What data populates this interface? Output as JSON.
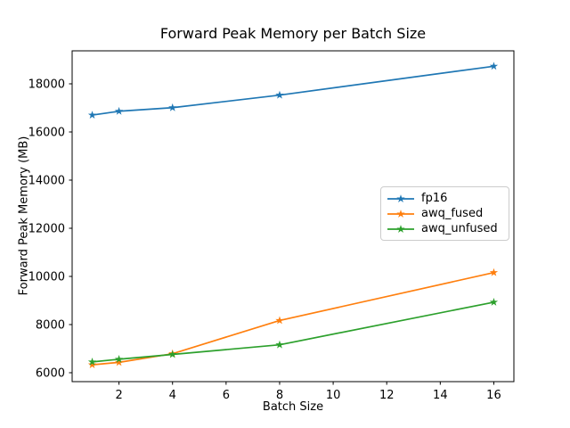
{
  "chart_data": {
    "type": "line",
    "title": "Forward Peak Memory per Batch Size",
    "xlabel": "Batch Size",
    "ylabel": "Forward Peak Memory (MB)",
    "x": [
      1,
      2,
      4,
      8,
      16
    ],
    "series": [
      {
        "name": "fp16",
        "color": "#1f77b4",
        "values": [
          16700,
          16860,
          17010,
          17530,
          18730
        ]
      },
      {
        "name": "awq_fused",
        "color": "#ff7f0e",
        "values": [
          6330,
          6430,
          6790,
          8170,
          10160
        ]
      },
      {
        "name": "awq_unfused",
        "color": "#2ca02c",
        "values": [
          6450,
          6560,
          6760,
          7160,
          8930
        ]
      }
    ],
    "x_ticks": [
      2,
      4,
      6,
      8,
      10,
      12,
      14,
      16
    ],
    "y_ticks": [
      6000,
      8000,
      10000,
      12000,
      14000,
      16000,
      18000
    ],
    "xlim": [
      0.25,
      16.75
    ],
    "ylim": [
      5630,
      19370
    ],
    "grid": false,
    "marker": "star",
    "legend_position": "center right",
    "axis_color": "#000000",
    "background_color": "#ffffff"
  }
}
